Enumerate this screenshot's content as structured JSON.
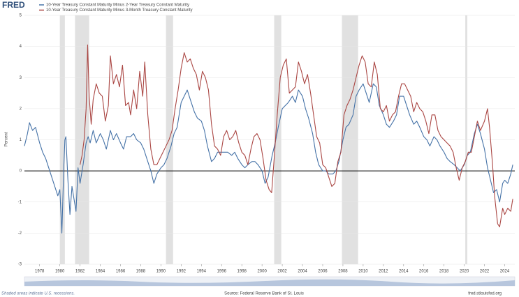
{
  "logo": "FRED",
  "chart_data": {
    "type": "line",
    "ylabel": "Percent",
    "xlim": [
      1976.5,
      2025
    ],
    "ylim": [
      -3,
      5
    ],
    "xticks": [
      1978,
      1980,
      1982,
      1984,
      1986,
      1988,
      1990,
      1992,
      1994,
      1996,
      1998,
      2000,
      2002,
      2004,
      2006,
      2008,
      2010,
      2012,
      2014,
      2016,
      2018,
      2020,
      2022,
      2024
    ],
    "yticks": [
      -3,
      -2,
      -1,
      0,
      1,
      2,
      3,
      4,
      5
    ],
    "grid": true,
    "recessions": [
      [
        1980.0,
        1980.5
      ],
      [
        1981.5,
        1982.9
      ],
      [
        1990.5,
        1991.2
      ],
      [
        2001.2,
        2001.9
      ],
      [
        2007.9,
        2009.5
      ],
      [
        2020.1,
        2020.3
      ]
    ],
    "recession_note": "Shaded areas indicate U.S. recessions.",
    "source": "Source: Federal Reserve Bank of St. Louis",
    "site": "fred.stlouisfed.org",
    "series": [
      {
        "name": "10-Year Treasury Constant Maturity Minus 2-Year Treasury Constant Maturity",
        "color": "#4572a7",
        "x": [
          1976.5,
          1976.8,
          1977.0,
          1977.3,
          1977.6,
          1978.0,
          1978.3,
          1978.6,
          1978.9,
          1979.2,
          1979.5,
          1979.8,
          1980.0,
          1980.2,
          1980.4,
          1980.5,
          1980.6,
          1980.8,
          1981.0,
          1981.2,
          1981.4,
          1981.6,
          1981.8,
          1982.0,
          1982.3,
          1982.6,
          1982.8,
          1983.0,
          1983.3,
          1983.6,
          1984.0,
          1984.3,
          1984.6,
          1985.0,
          1985.3,
          1985.6,
          1986.0,
          1986.3,
          1986.6,
          1987.0,
          1987.3,
          1987.6,
          1988.0,
          1988.3,
          1988.6,
          1989.0,
          1989.3,
          1989.6,
          1990.0,
          1990.3,
          1990.6,
          1991.0,
          1991.3,
          1991.6,
          1992.0,
          1992.3,
          1992.6,
          1993.0,
          1993.3,
          1993.6,
          1994.0,
          1994.3,
          1994.6,
          1995.0,
          1995.3,
          1995.6,
          1996.0,
          1996.3,
          1996.6,
          1997.0,
          1997.3,
          1997.6,
          1998.0,
          1998.3,
          1998.6,
          1999.0,
          1999.3,
          1999.6,
          2000.0,
          2000.3,
          2000.6,
          2001.0,
          2001.3,
          2001.6,
          2002.0,
          2002.3,
          2002.6,
          2003.0,
          2003.3,
          2003.6,
          2004.0,
          2004.3,
          2004.6,
          2005.0,
          2005.3,
          2005.6,
          2006.0,
          2006.3,
          2006.6,
          2007.0,
          2007.3,
          2007.6,
          2008.0,
          2008.3,
          2008.6,
          2009.0,
          2009.3,
          2009.6,
          2010.0,
          2010.3,
          2010.6,
          2011.0,
          2011.3,
          2011.6,
          2012.0,
          2012.3,
          2012.6,
          2013.0,
          2013.3,
          2013.6,
          2014.0,
          2014.3,
          2014.6,
          2015.0,
          2015.3,
          2015.6,
          2016.0,
          2016.3,
          2016.6,
          2017.0,
          2017.3,
          2017.6,
          2018.0,
          2018.3,
          2018.6,
          2019.0,
          2019.3,
          2019.6,
          2020.0,
          2020.3,
          2020.6,
          2021.0,
          2021.3,
          2021.6,
          2022.0,
          2022.3,
          2022.6,
          2022.9,
          2023.2,
          2023.5,
          2023.8,
          2024.0,
          2024.3,
          2024.6,
          2024.8
        ],
        "values": [
          0.8,
          1.2,
          1.55,
          1.3,
          1.4,
          0.9,
          0.6,
          0.4,
          0.1,
          -0.2,
          -0.5,
          -0.8,
          -0.6,
          -2.0,
          0.2,
          1.0,
          1.1,
          -0.3,
          -1.4,
          -0.5,
          -0.9,
          -1.3,
          0.1,
          -0.4,
          0.2,
          0.9,
          1.1,
          0.9,
          1.3,
          0.9,
          1.2,
          1.0,
          0.7,
          1.3,
          1.0,
          1.2,
          0.9,
          0.7,
          1.1,
          1.1,
          1.2,
          1.0,
          0.9,
          0.7,
          0.4,
          0.0,
          -0.4,
          -0.1,
          0.1,
          0.2,
          0.4,
          0.8,
          1.2,
          1.4,
          2.2,
          2.4,
          2.6,
          2.2,
          1.9,
          1.7,
          1.6,
          1.3,
          0.8,
          0.3,
          0.4,
          0.6,
          0.6,
          0.6,
          0.6,
          0.5,
          0.6,
          0.4,
          0.2,
          0.1,
          0.2,
          0.3,
          0.3,
          0.2,
          0.0,
          -0.4,
          -0.2,
          0.5,
          0.9,
          1.4,
          2.0,
          2.1,
          2.2,
          2.4,
          2.2,
          2.6,
          2.4,
          2.0,
          1.7,
          1.2,
          0.6,
          0.2,
          0.0,
          0.0,
          -0.1,
          -0.1,
          0.0,
          0.3,
          1.0,
          1.4,
          1.5,
          1.8,
          2.4,
          2.6,
          2.8,
          2.5,
          2.2,
          2.8,
          2.7,
          2.1,
          1.8,
          1.5,
          1.4,
          1.6,
          1.8,
          2.4,
          2.4,
          2.1,
          1.8,
          1.5,
          1.6,
          1.4,
          1.1,
          1.0,
          0.8,
          1.1,
          1.0,
          0.8,
          0.6,
          0.4,
          0.3,
          0.2,
          0.1,
          0.0,
          0.2,
          0.5,
          0.6,
          1.2,
          1.5,
          1.2,
          0.7,
          0.1,
          -0.3,
          -0.7,
          -0.6,
          -1.0,
          -0.4,
          -0.3,
          -0.4,
          -0.1,
          0.2
        ]
      },
      {
        "name": "10-Year Treasury Constant Maturity Minus 3-Month Treasury Constant Maturity",
        "color": "#aa4643",
        "x": [
          1982.0,
          1982.2,
          1982.4,
          1982.6,
          1982.75,
          1982.9,
          1983.1,
          1983.3,
          1983.6,
          1983.9,
          1984.2,
          1984.5,
          1984.8,
          1985.0,
          1985.3,
          1985.6,
          1985.9,
          1986.2,
          1986.5,
          1986.8,
          1987.0,
          1987.3,
          1987.6,
          1987.9,
          1988.2,
          1988.4,
          1988.7,
          1989.0,
          1989.3,
          1989.6,
          1989.9,
          1990.2,
          1990.5,
          1990.8,
          1991.1,
          1991.4,
          1991.7,
          1992.0,
          1992.3,
          1992.6,
          1992.9,
          1993.2,
          1993.5,
          1993.8,
          1994.1,
          1994.4,
          1994.7,
          1995.0,
          1995.3,
          1995.6,
          1995.9,
          1996.2,
          1996.5,
          1996.8,
          1997.1,
          1997.4,
          1997.7,
          1998.0,
          1998.3,
          1998.6,
          1998.9,
          1999.2,
          1999.5,
          1999.8,
          2000.1,
          2000.4,
          2000.7,
          2000.95,
          2001.2,
          2001.5,
          2001.8,
          2002.1,
          2002.4,
          2002.7,
          2003.0,
          2003.3,
          2003.6,
          2003.9,
          2004.2,
          2004.5,
          2004.8,
          2005.1,
          2005.4,
          2005.7,
          2006.0,
          2006.3,
          2006.6,
          2006.9,
          2007.2,
          2007.5,
          2007.8,
          2008.1,
          2008.4,
          2008.7,
          2009.0,
          2009.3,
          2009.6,
          2009.9,
          2010.2,
          2010.5,
          2010.8,
          2011.1,
          2011.4,
          2011.7,
          2012.0,
          2012.3,
          2012.6,
          2012.9,
          2013.2,
          2013.5,
          2013.8,
          2014.1,
          2014.4,
          2014.7,
          2015.0,
          2015.3,
          2015.6,
          2015.9,
          2016.2,
          2016.5,
          2016.8,
          2017.1,
          2017.4,
          2017.7,
          2018.0,
          2018.3,
          2018.6,
          2018.9,
          2019.2,
          2019.5,
          2019.8,
          2020.1,
          2020.4,
          2020.7,
          2021.0,
          2021.3,
          2021.6,
          2022.0,
          2022.3,
          2022.5,
          2022.8,
          2023.0,
          2023.3,
          2023.5,
          2023.8,
          2024.0,
          2024.3,
          2024.6,
          2024.8
        ],
        "values": [
          0.2,
          0.5,
          1.0,
          2.0,
          4.05,
          2.4,
          1.5,
          2.3,
          2.8,
          2.5,
          2.4,
          1.6,
          2.1,
          3.7,
          2.8,
          3.1,
          2.7,
          3.4,
          2.1,
          2.2,
          1.8,
          2.6,
          2.0,
          3.2,
          2.4,
          3.5,
          1.8,
          0.7,
          0.2,
          0.2,
          0.4,
          0.6,
          0.8,
          1.0,
          1.3,
          2.0,
          2.6,
          3.3,
          3.8,
          3.5,
          3.6,
          3.3,
          3.1,
          2.6,
          3.2,
          3.0,
          2.6,
          1.5,
          0.8,
          0.7,
          0.5,
          1.1,
          1.3,
          1.0,
          1.1,
          1.3,
          0.9,
          0.6,
          0.5,
          0.2,
          0.7,
          1.1,
          1.2,
          1.0,
          0.4,
          -0.3,
          -0.6,
          -0.7,
          0.4,
          1.8,
          3.0,
          3.4,
          3.6,
          2.5,
          2.6,
          2.7,
          3.5,
          3.2,
          2.8,
          3.1,
          2.5,
          1.8,
          1.1,
          0.9,
          0.2,
          0.1,
          -0.2,
          -0.5,
          -0.4,
          0.3,
          0.6,
          1.8,
          2.1,
          2.3,
          2.6,
          3.0,
          3.4,
          3.7,
          3.5,
          2.8,
          2.7,
          3.5,
          3.1,
          2.0,
          1.9,
          2.1,
          1.6,
          1.8,
          1.9,
          2.4,
          2.8,
          2.8,
          2.6,
          2.4,
          1.9,
          2.2,
          2.0,
          1.9,
          1.6,
          1.2,
          1.8,
          1.8,
          1.3,
          1.1,
          1.0,
          0.9,
          0.8,
          0.6,
          0.1,
          -0.3,
          0.1,
          0.3,
          0.6,
          0.6,
          1.1,
          1.6,
          1.3,
          1.6,
          2.0,
          1.4,
          0.2,
          -0.8,
          -1.7,
          -1.8,
          -1.2,
          -1.4,
          -1.2,
          -1.3,
          -0.9
        ]
      }
    ]
  }
}
